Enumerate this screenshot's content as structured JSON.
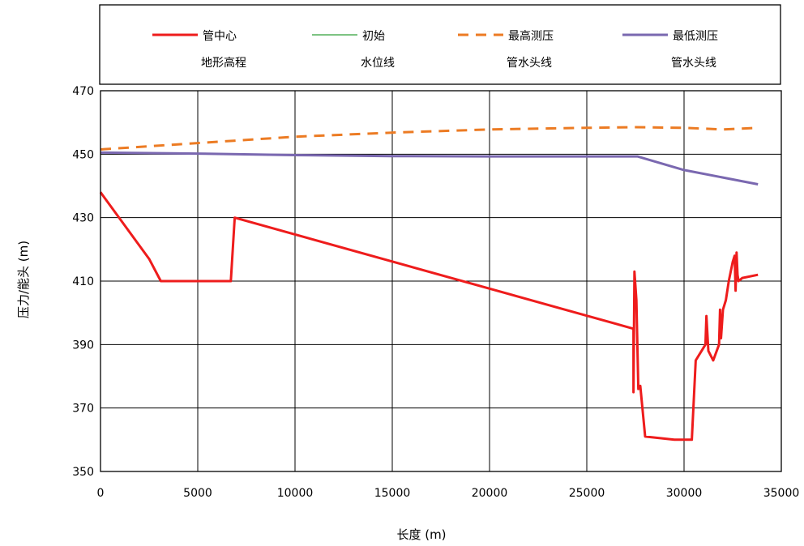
{
  "chart_data": {
    "type": "line",
    "title": "",
    "xlabel": "长度 (m)",
    "ylabel": "压力/能头 (m)",
    "xlim": [
      0,
      35000
    ],
    "ylim": [
      350,
      470
    ],
    "xticks": [
      0,
      5000,
      10000,
      15000,
      20000,
      25000,
      30000,
      35000
    ],
    "yticks": [
      350,
      370,
      390,
      410,
      430,
      450,
      470
    ],
    "grid": true,
    "legend_position": "top",
    "series": [
      {
        "name_lines": [
          "管中心",
          "地形高程"
        ],
        "color": "#ee1c1c",
        "dash": "solid",
        "x": [
          0,
          2500,
          3100,
          6700,
          6900,
          27400,
          27400,
          27450,
          27550,
          27650,
          27750,
          28000,
          29500,
          30400,
          30600,
          30900,
          31100,
          31150,
          31250,
          31500,
          31800,
          31850,
          31900,
          32000,
          32150,
          32300,
          32500,
          32600,
          32650,
          32700,
          32750,
          32800,
          33000,
          33800
        ],
        "y": [
          438,
          417,
          410,
          410,
          430,
          395,
          375,
          413,
          404,
          376,
          377,
          361,
          360,
          360,
          385,
          388,
          390,
          399,
          388,
          385,
          390,
          401,
          392,
          401,
          404,
          410,
          416,
          418,
          407,
          419,
          412,
          410,
          411,
          412
        ]
      },
      {
        "name_lines": [
          "初始",
          "水位线"
        ],
        "color": "#7dc383",
        "dash": "solid",
        "x": [],
        "y": []
      },
      {
        "name_lines": [
          "最高测压",
          "管水头线"
        ],
        "color": "#ec7b23",
        "dash": "dashed",
        "x": [
          0,
          5000,
          10000,
          15000,
          20000,
          25000,
          27500,
          30000,
          32000,
          33800
        ],
        "y": [
          451.5,
          453.5,
          455.5,
          456.8,
          457.8,
          458.3,
          458.5,
          458.3,
          457.8,
          458.3
        ]
      },
      {
        "name_lines": [
          "最低测压",
          "管水头线"
        ],
        "color": "#7a68b0",
        "dash": "solid",
        "x": [
          0,
          5000,
          10000,
          15000,
          20000,
          25000,
          27600,
          30000,
          33800
        ],
        "y": [
          450.5,
          450.2,
          449.7,
          449.4,
          449.3,
          449.3,
          449.3,
          445,
          440.5
        ]
      }
    ]
  }
}
